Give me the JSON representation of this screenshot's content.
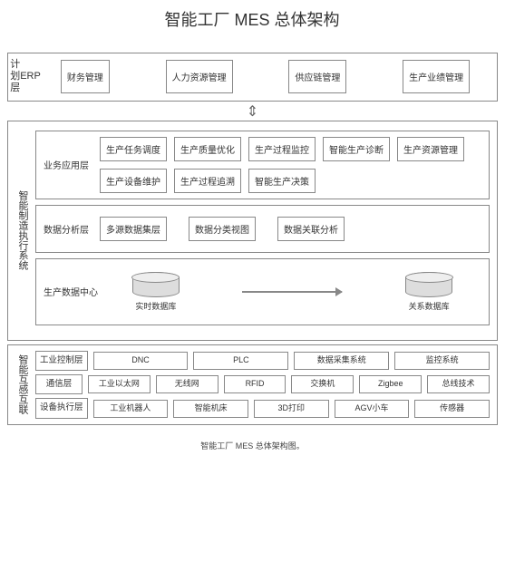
{
  "title": "智能工厂 MES 总体架构",
  "caption": "智能工厂 MES 总体架构图。",
  "erp": {
    "label1": "计划层",
    "label2": "ERP",
    "items": [
      "财务管理",
      "人力资源管理",
      "供应链管理",
      "生产业绩管理"
    ]
  },
  "mes": {
    "side_label": "智能制造执行系统",
    "biz": {
      "label": "业务应用层",
      "items": [
        "生产任务调度",
        "生产质量优化",
        "生产过程监控",
        "智能生产诊断",
        "生产资源管理",
        "生产设备维护",
        "生产过程追溯",
        "智能生产决策"
      ]
    },
    "analysis": {
      "label": "数据分析层",
      "items": [
        "多源数据集层",
        "数据分类视图",
        "数据关联分析"
      ]
    },
    "datacenter": {
      "label": "生产数据中心",
      "db1": "实时数据库",
      "db2": "关系数据库"
    }
  },
  "net": {
    "side_label": "智能互感互联",
    "rows": [
      {
        "label": "工业控制层",
        "items": [
          "DNC",
          "PLC",
          "数据采集系统",
          "监控系统"
        ]
      },
      {
        "label": "通信层",
        "items": [
          "工业以太网",
          "无线网",
          "RFID",
          "交换机",
          "Zigbee",
          "总线技术"
        ]
      },
      {
        "label": "设备执行层",
        "items": [
          "工业机器人",
          "智能机床",
          "3D打印",
          "AGV小车",
          "传感器"
        ]
      }
    ]
  },
  "colors": {
    "border": "#888888",
    "bg": "#ffffff",
    "text": "#333333"
  }
}
